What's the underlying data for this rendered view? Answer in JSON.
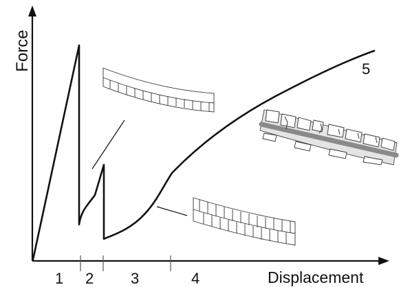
{
  "axes": {
    "y_label": "Force",
    "x_label": "Displacement"
  },
  "stages": [
    "1",
    "2",
    "3",
    "4",
    "5"
  ],
  "colors": {
    "line": "#111111",
    "beam_fill": "#ffffff",
    "crack_band": "#8a8a8a",
    "damaged_fill": "#d9d9d9"
  }
}
